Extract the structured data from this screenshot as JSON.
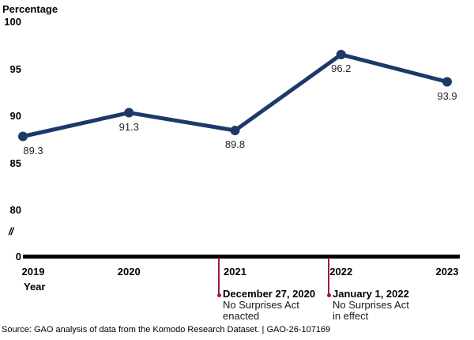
{
  "chart_data": {
    "type": "line",
    "title": "",
    "ylabel": "Percentage",
    "xlabel": "Year",
    "categories": [
      "2019",
      "2020",
      "2021",
      "2022",
      "2023"
    ],
    "series": [
      {
        "name": "Percentage",
        "values": [
          89.3,
          91.3,
          89.8,
          96.2,
          93.9
        ]
      }
    ],
    "point_labels": [
      "89.3",
      "91.3",
      "89.8",
      "96.2",
      "93.9"
    ],
    "y_ticks": [
      "100",
      "95",
      "90",
      "85",
      "80"
    ],
    "y_tick_values": [
      100,
      95,
      90,
      85,
      80
    ],
    "y_axis_break_symbol": "//",
    "y_origin_label": "0",
    "ylim_display": [
      80,
      100
    ],
    "grid": false,
    "legend": "none",
    "line_color": "#1c3969",
    "marker_color": "#1c3969",
    "annotation_color": "#9e1b32",
    "annotations": [
      {
        "at_category": "2021",
        "date": "December 27, 2020",
        "lines": [
          "No Surprises Act",
          "enacted"
        ]
      },
      {
        "at_category": "2022",
        "date": "January 1, 2022",
        "lines": [
          "No Surprises Act",
          "in effect"
        ]
      }
    ]
  },
  "source": {
    "text": "Source: GAO analysis of data from the Komodo Research Dataset.  |  GAO-26-107169"
  }
}
